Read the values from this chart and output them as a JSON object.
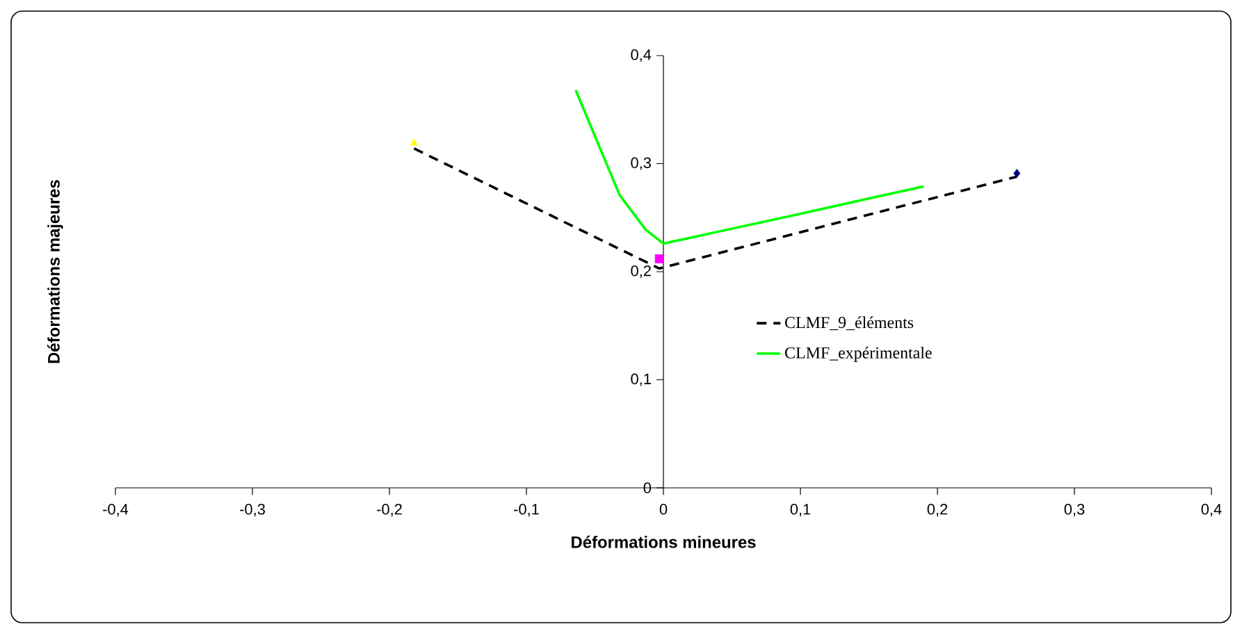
{
  "chart_data": {
    "type": "line",
    "xlabel": "Déformations mineures",
    "ylabel": "Déformations majeures",
    "xlim": [
      -0.4,
      0.4
    ],
    "ylim": [
      0,
      0.4
    ],
    "xticks": [
      {
        "value": -0.4,
        "label": "-0,4"
      },
      {
        "value": -0.3,
        "label": "-0,3"
      },
      {
        "value": -0.2,
        "label": "-0,2"
      },
      {
        "value": -0.1,
        "label": "-0,1"
      },
      {
        "value": 0,
        "label": "0"
      },
      {
        "value": 0.1,
        "label": "0,1"
      },
      {
        "value": 0.2,
        "label": "0,2"
      },
      {
        "value": 0.3,
        "label": "0,3"
      },
      {
        "value": 0.4,
        "label": "0,4"
      }
    ],
    "yticks": [
      {
        "value": 0,
        "label": "0"
      },
      {
        "value": 0.1,
        "label": "0,1"
      },
      {
        "value": 0.2,
        "label": "0,2"
      },
      {
        "value": 0.3,
        "label": "0,3"
      },
      {
        "value": 0.4,
        "label": "0,4"
      }
    ],
    "legend": "right",
    "grid": false,
    "series": [
      {
        "name": "CLMF_9_éléments",
        "color": "#000000",
        "line_style": "dashed",
        "x": [
          -0.182,
          -0.003,
          0.258
        ],
        "values": [
          0.314,
          0.203,
          0.288
        ]
      },
      {
        "name": "CLMF_expérimentale",
        "color": "#00ff00",
        "line_style": "solid",
        "x": [
          -0.064,
          -0.032,
          -0.013,
          0.0,
          0.094,
          0.19
        ],
        "values": [
          0.368,
          0.271,
          0.239,
          0.226,
          0.252,
          0.279
        ]
      },
      {
        "type": "scatter",
        "color": "#ffff00",
        "marker": "triangle",
        "x": [
          -0.182
        ],
        "values": [
          0.319
        ]
      },
      {
        "type": "scatter",
        "color": "#ff00ff",
        "marker": "square",
        "x": [
          -0.003
        ],
        "values": [
          0.212
        ]
      },
      {
        "type": "scatter",
        "color": "#000080",
        "marker": "diamond",
        "x": [
          0.258
        ],
        "values": [
          0.291
        ]
      }
    ]
  }
}
